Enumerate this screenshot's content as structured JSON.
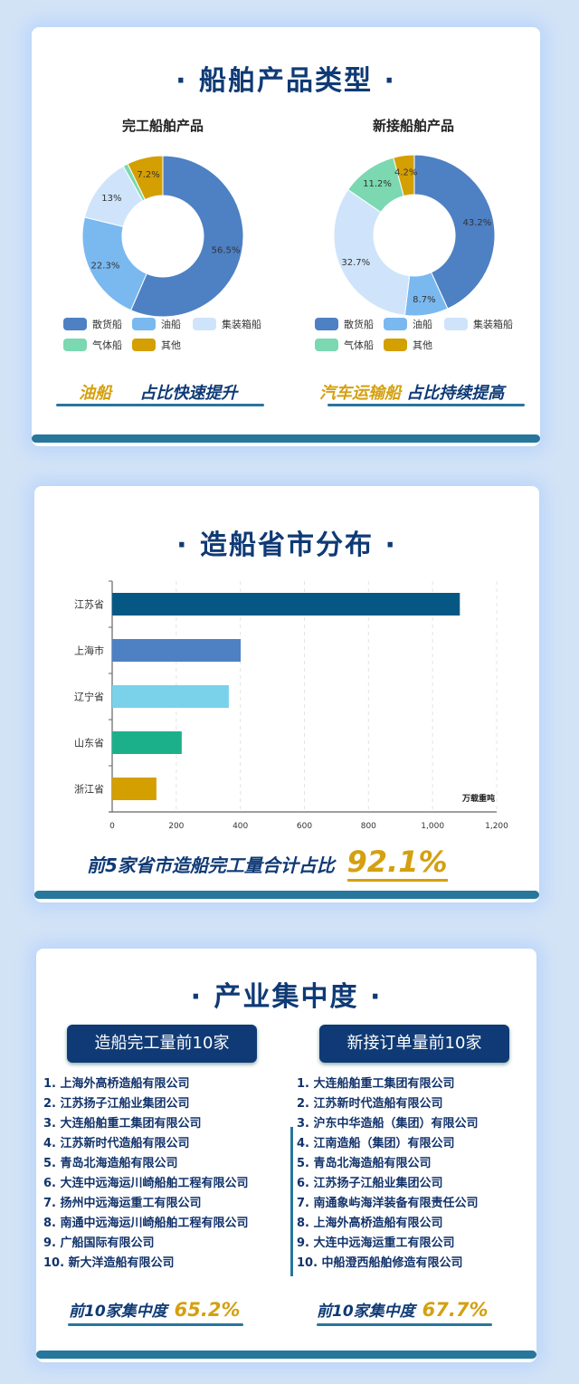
{
  "section1": {
    "title": "· 船舶产品类型 ·",
    "highlight_left": {
      "gold": "油船",
      "text": "占比快速提升"
    },
    "highlight_right": {
      "gold": "汽车运输船",
      "text": "占比持续提高"
    }
  },
  "section2": {
    "title": "· 造船省市分布 ·",
    "summary_text": "前5家省市造船完工量合计占比",
    "summary_value": "92.1%"
  },
  "section3": {
    "title": "· 产业集中度 ·",
    "left": {
      "banner": "造船完工量前10家",
      "items": [
        "1. 上海外高桥造船有限公司",
        "2. 江苏扬子江船业集团公司",
        "3. 大连船舶重工集团有限公司",
        "4. 江苏新时代造船有限公司",
        "5. 青岛北海造船有限公司",
        "6. 大连中远海运川崎船舶工程有限公司",
        "7. 扬州中远海运重工有限公司",
        "8. 南通中远海运川崎船舶工程有限公司",
        "9. 广船国际有限公司",
        "10. 新大洋造船有限公司"
      ],
      "conc_label": "前10家集中度",
      "conc_value": "65.2%"
    },
    "right": {
      "banner": "新接订单量前10家",
      "items": [
        "1. 大连船舶重工集团有限公司",
        "2. 江苏新时代造船有限公司",
        "3. 沪东中华造船（集团）有限公司",
        "4. 江南造船（集团）有限公司",
        "5. 青岛北海造船有限公司",
        "6. 江苏扬子江船业集团公司",
        "7. 南通象屿海洋装备有限责任公司",
        "8. 上海外高桥造船有限公司",
        "9. 大连中远海运重工有限公司",
        "10. 中船澄西船舶修造有限公司"
      ],
      "conc_label": "前10家集中度",
      "conc_value": "67.7%"
    }
  },
  "chart_data": [
    {
      "type": "pie",
      "subtype": "donut",
      "title": "完工船舶产品",
      "categories": [
        "散货船",
        "油船",
        "集装箱船",
        "气体船",
        "其他"
      ],
      "values": [
        56.5,
        22.3,
        13,
        1.0,
        7.2
      ],
      "data_labels": [
        "56.5%",
        "22.3%",
        "13%",
        "",
        "7.2%"
      ],
      "colors": [
        "#4e80c4",
        "#7ab8f0",
        "#cfe4fa",
        "#7bd8b0",
        "#d49f00"
      ],
      "legend": "bottom"
    },
    {
      "type": "pie",
      "subtype": "donut",
      "title": "新接船舶产品",
      "categories": [
        "散货船",
        "油船",
        "集装箱船",
        "气体船",
        "其他"
      ],
      "values": [
        43.2,
        8.7,
        32.7,
        11.2,
        4.2
      ],
      "data_labels": [
        "43.2%",
        "8.7%",
        "32.7%",
        "11.2%",
        "4.2%"
      ],
      "colors": [
        "#4e80c4",
        "#7ab8f0",
        "#cfe4fa",
        "#7bd8b0",
        "#d49f00"
      ],
      "legend": "bottom"
    },
    {
      "type": "bar",
      "orientation": "horizontal",
      "categories": [
        "江苏省",
        "上海市",
        "辽宁省",
        "山东省",
        "浙江省"
      ],
      "values": [
        1085,
        401,
        364,
        217,
        138
      ],
      "colors": [
        "#065884",
        "#4e80c4",
        "#79d2ea",
        "#1bb08a",
        "#d49f00"
      ],
      "unit_label": "万载重吨",
      "xlim": [
        0,
        1200
      ],
      "xticks": [
        "0",
        "200",
        "400",
        "600",
        "800",
        "1,000",
        "1,200"
      ],
      "grid": "vertical dashed"
    }
  ]
}
